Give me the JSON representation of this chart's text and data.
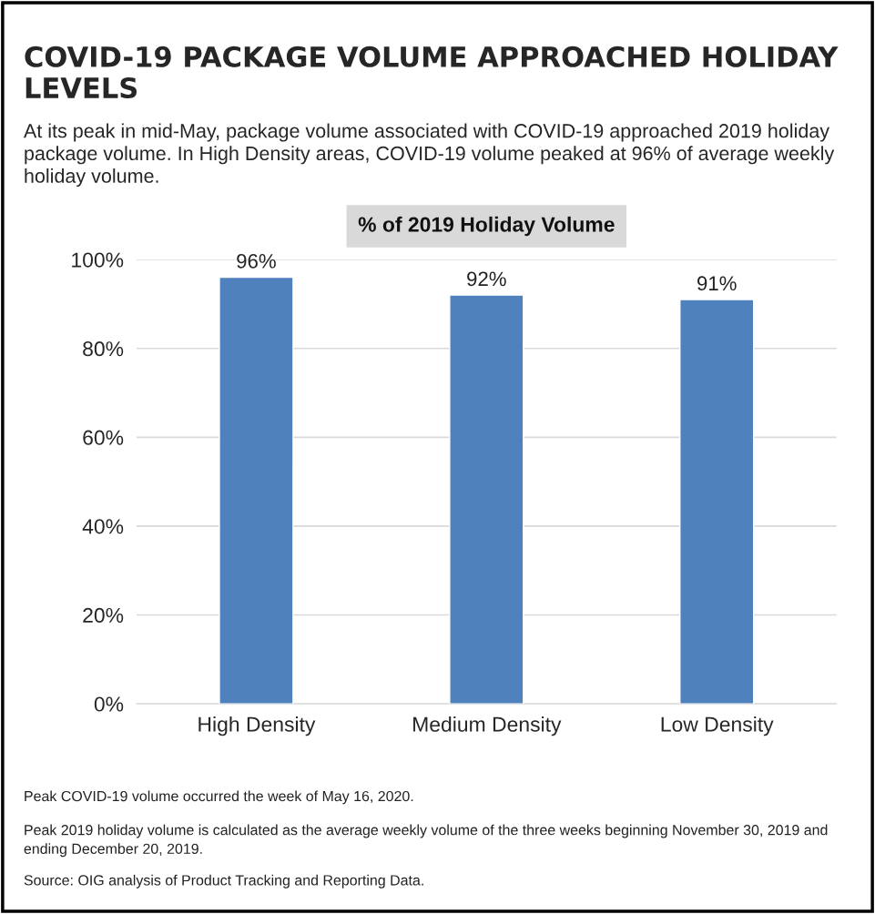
{
  "chart_data": {
    "type": "bar",
    "title": "COVID-19 PACKAGE VOLUME APPROACHED HOLIDAY LEVELS",
    "subtitle": "At its peak in mid-May, package volume associated with COVID-19 approached 2019 holiday package volume. In High Density areas, COVID-19 volume peaked at 96% of average weekly holiday volume.",
    "ylabel": "% of 2019 Holiday Volume",
    "categories": [
      "High Density",
      "Medium Density",
      "Low Density"
    ],
    "values": [
      96,
      92,
      91
    ],
    "color": "#4f81bd",
    "value_labels": [
      "96%",
      "92%",
      "91%"
    ],
    "ylim": [
      0,
      100
    ],
    "yticks": [
      {
        "value": 0,
        "label": "0%"
      },
      {
        "value": 20,
        "label": "20%"
      },
      {
        "value": 40,
        "label": "40%"
      },
      {
        "value": 60,
        "label": "60%"
      },
      {
        "value": 80,
        "label": "80%"
      },
      {
        "value": 100,
        "label": "100%"
      }
    ],
    "grid": "y",
    "legend": false,
    "annotations": [
      "Peak COVID-19 volume occurred the week of May 16, 2020.",
      "Peak 2019 holiday volume is calculated as the average weekly volume of the three weeks beginning November 30, 2019 and ending December 20, 2019.",
      "Source: OIG analysis of Product Tracking and Reporting Data."
    ]
  }
}
